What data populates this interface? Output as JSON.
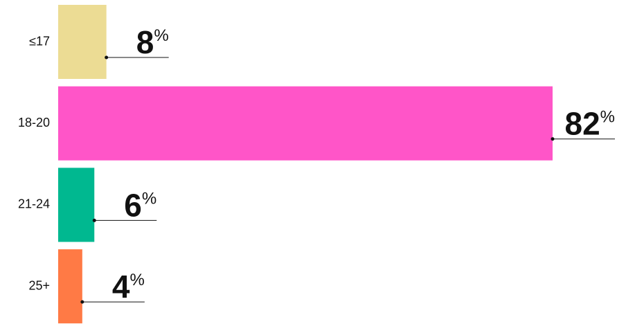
{
  "chart_data": {
    "type": "bar",
    "orientation": "horizontal",
    "categories": [
      "≤17",
      "18-20",
      "21-24",
      "25+"
    ],
    "values": [
      8,
      82,
      6,
      4
    ],
    "value_labels": [
      "8%",
      "82%",
      "6%",
      "4%"
    ],
    "colors": [
      "#ecdc94",
      "#ff55c8",
      "#00b890",
      "#ff7a45"
    ]
  }
}
